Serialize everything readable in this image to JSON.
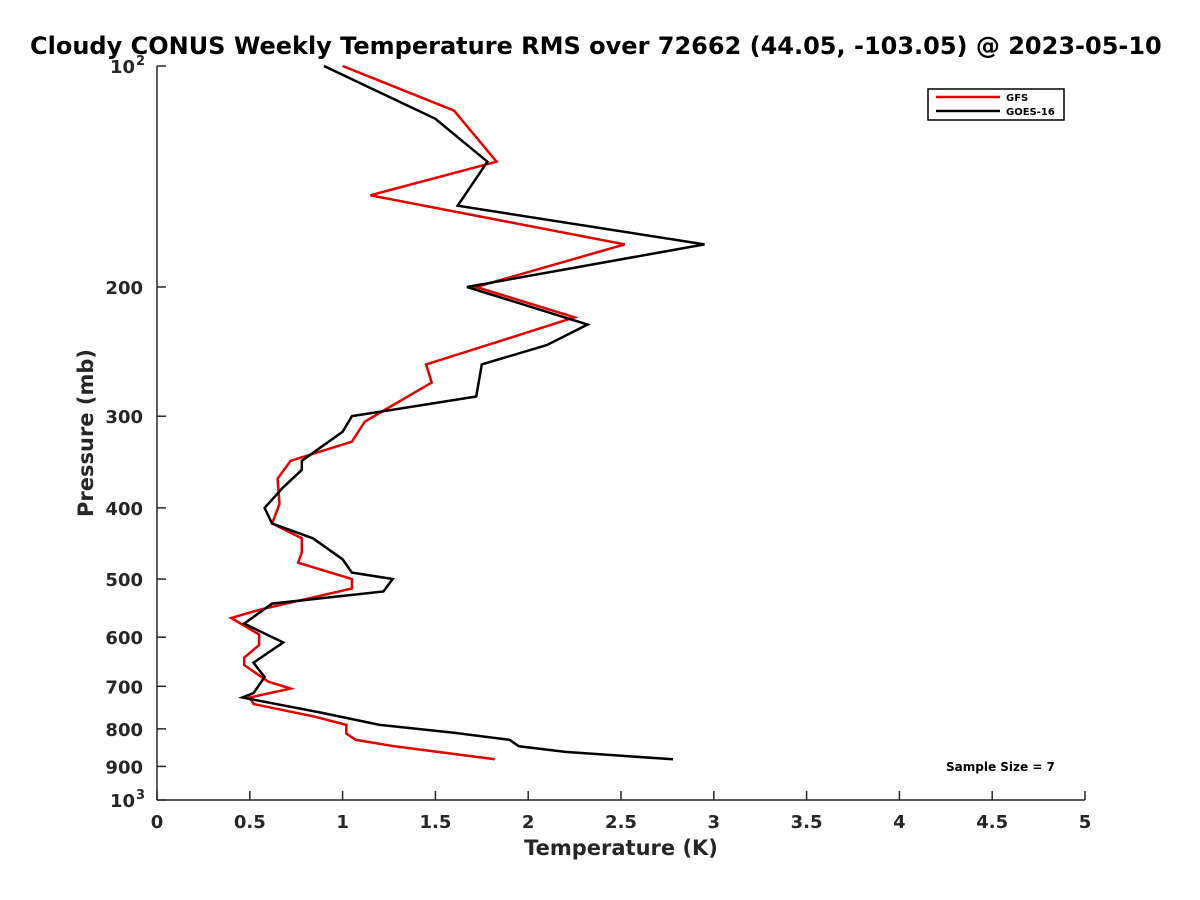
{
  "chart_data": {
    "type": "line",
    "title": "Cloudy CONUS Weekly Temperature RMS over 72662 (44.05, -103.05) @ 2023-05-10",
    "xlabel": "Temperature (K)",
    "ylabel": "Pressure (mb)",
    "xlim": [
      0,
      5
    ],
    "ylim": [
      100,
      1000
    ],
    "y_scale": "log",
    "y_reversed": true,
    "x_ticks": [
      0,
      0.5,
      1,
      1.5,
      2,
      2.5,
      3,
      3.5,
      4,
      4.5,
      5
    ],
    "x_tick_labels": [
      "0",
      "0.5",
      "1",
      "1.5",
      "2",
      "2.5",
      "3",
      "3.5",
      "4",
      "4.5",
      "5"
    ],
    "y_ticks": [
      {
        "value": 100,
        "label": "10",
        "exp": "2"
      },
      {
        "value": 200,
        "label": "200"
      },
      {
        "value": 300,
        "label": "300"
      },
      {
        "value": 400,
        "label": "400"
      },
      {
        "value": 500,
        "label": "500"
      },
      {
        "value": 600,
        "label": "600"
      },
      {
        "value": 700,
        "label": "700"
      },
      {
        "value": 800,
        "label": "800"
      },
      {
        "value": 900,
        "label": "900"
      },
      {
        "value": 1000,
        "label": "10",
        "exp": "3"
      }
    ],
    "grid": false,
    "legend_position": "top-right",
    "annotation": "Sample Size = 7",
    "series": [
      {
        "name": "GFS",
        "color": "#e00000",
        "points": [
          [
            1.0,
            100
          ],
          [
            1.6,
            115
          ],
          [
            1.83,
            135
          ],
          [
            1.15,
            150
          ],
          [
            2.52,
            175
          ],
          [
            1.72,
            200
          ],
          [
            2.25,
            220
          ],
          [
            1.78,
            240
          ],
          [
            1.45,
            255
          ],
          [
            1.48,
            270
          ],
          [
            1.12,
            305
          ],
          [
            1.05,
            325
          ],
          [
            0.72,
            345
          ],
          [
            0.65,
            365
          ],
          [
            0.66,
            395
          ],
          [
            0.62,
            420
          ],
          [
            0.78,
            440
          ],
          [
            0.78,
            460
          ],
          [
            0.76,
            475
          ],
          [
            1.05,
            500
          ],
          [
            1.05,
            515
          ],
          [
            0.56,
            550
          ],
          [
            0.4,
            565
          ],
          [
            0.55,
            595
          ],
          [
            0.55,
            615
          ],
          [
            0.47,
            640
          ],
          [
            0.47,
            655
          ],
          [
            0.6,
            690
          ],
          [
            0.72,
            705
          ],
          [
            0.5,
            725
          ],
          [
            0.52,
            740
          ],
          [
            0.85,
            770
          ],
          [
            1.02,
            790
          ],
          [
            1.02,
            812
          ],
          [
            1.07,
            828
          ],
          [
            1.28,
            845
          ],
          [
            1.82,
            880
          ]
        ]
      },
      {
        "name": "GOES-16",
        "color": "#000000",
        "points": [
          [
            0.9,
            100
          ],
          [
            1.5,
            118
          ],
          [
            1.78,
            135
          ],
          [
            1.62,
            155
          ],
          [
            2.95,
            175
          ],
          [
            1.67,
            200
          ],
          [
            2.32,
            225
          ],
          [
            2.1,
            240
          ],
          [
            1.75,
            255
          ],
          [
            1.72,
            282
          ],
          [
            1.05,
            300
          ],
          [
            1.0,
            315
          ],
          [
            0.78,
            345
          ],
          [
            0.78,
            355
          ],
          [
            0.68,
            375
          ],
          [
            0.58,
            400
          ],
          [
            0.62,
            420
          ],
          [
            0.84,
            440
          ],
          [
            1.0,
            470
          ],
          [
            1.05,
            490
          ],
          [
            1.27,
            500
          ],
          [
            1.22,
            520
          ],
          [
            0.62,
            540
          ],
          [
            0.47,
            575
          ],
          [
            0.65,
            605
          ],
          [
            0.68,
            610
          ],
          [
            0.52,
            650
          ],
          [
            0.58,
            680
          ],
          [
            0.52,
            715
          ],
          [
            0.46,
            725
          ],
          [
            0.88,
            760
          ],
          [
            1.2,
            790
          ],
          [
            1.6,
            810
          ],
          [
            1.9,
            828
          ],
          [
            1.95,
            845
          ],
          [
            2.2,
            860
          ],
          [
            2.78,
            880
          ]
        ]
      }
    ]
  }
}
